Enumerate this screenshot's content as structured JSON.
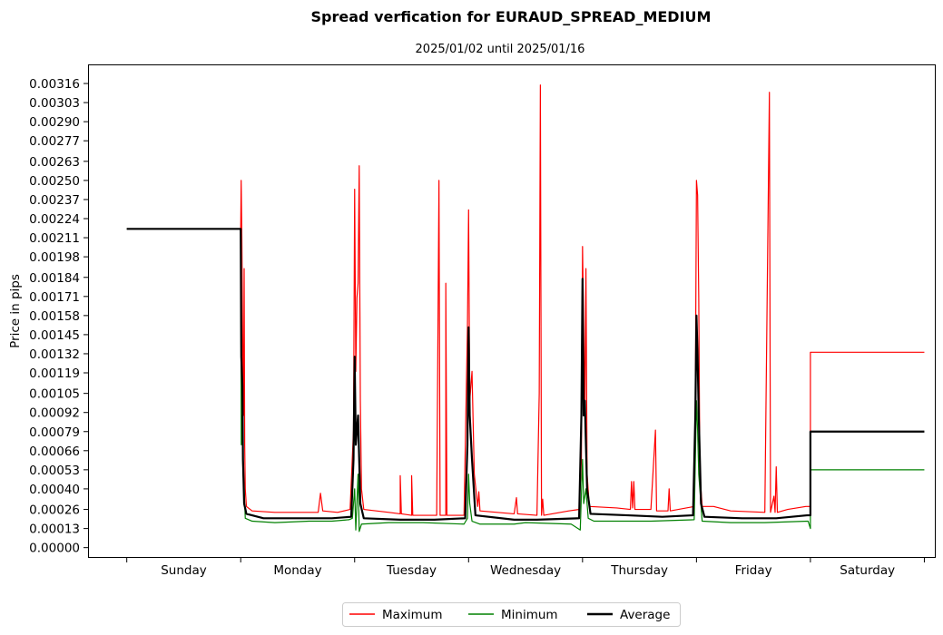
{
  "chart_data": {
    "type": "line",
    "title": "Spread verfication for EURAUD_SPREAD_MEDIUM",
    "subtitle": "2025/01/02 until 2025/01/16",
    "xlabel": "",
    "ylabel": "Price in pips",
    "ylim": [
      -7e-05,
      0.00329
    ],
    "xlim": [
      -0.34,
      7.1
    ],
    "grid": false,
    "legend_position": "bottom-center",
    "x_tick_labels": [
      "Sunday",
      "Monday",
      "Tuesday",
      "Wednesday",
      "Thursday",
      "Friday",
      "Saturday"
    ],
    "y_tick_labels": [
      "0.00000",
      "0.00013",
      "0.00026",
      "0.00040",
      "0.00053",
      "0.00066",
      "0.00079",
      "0.00092",
      "0.00105",
      "0.00119",
      "0.00132",
      "0.00145",
      "0.00158",
      "0.00171",
      "0.00184",
      "0.00198",
      "0.00211",
      "0.00224",
      "0.00237",
      "0.00250",
      "0.00263",
      "0.00277",
      "0.00290",
      "0.00303",
      "0.00316"
    ],
    "x_unit": "days from start of week (0 = Sunday 00:00, 7 = end of Saturday)",
    "series": [
      {
        "name": "Maximum",
        "color": "#ff0000",
        "linewidth": 1.2,
        "points": [
          [
            0,
            0.00217
          ],
          [
            1,
            0.00217
          ],
          [
            1.004,
            0.0025
          ],
          [
            1.01,
            0.0021
          ],
          [
            1.015,
            0.0016
          ],
          [
            1.02,
            0.0012
          ],
          [
            1.025,
            0.0009
          ],
          [
            1.03,
            0.0019
          ],
          [
            1.035,
            0.0007
          ],
          [
            1.04,
            0.0004
          ],
          [
            1.05,
            0.00028
          ],
          [
            1.1,
            0.00025
          ],
          [
            1.3,
            0.00024
          ],
          [
            1.5,
            0.00024
          ],
          [
            1.68,
            0.00024
          ],
          [
            1.7,
            0.00037
          ],
          [
            1.72,
            0.00025
          ],
          [
            1.85,
            0.00024
          ],
          [
            1.96,
            0.00026
          ],
          [
            1.99,
            0.0008
          ],
          [
            2.0,
            0.00244
          ],
          [
            2.01,
            0.0012
          ],
          [
            2.02,
            0.0017
          ],
          [
            2.03,
            0.0018
          ],
          [
            2.04,
            0.0026
          ],
          [
            2.05,
            0.001
          ],
          [
            2.06,
            0.0004
          ],
          [
            2.08,
            0.00026
          ],
          [
            2.3,
            0.00024
          ],
          [
            2.4,
            0.00023
          ],
          [
            2.4,
            0.00049
          ],
          [
            2.41,
            0.00023
          ],
          [
            2.5,
            0.00022
          ],
          [
            2.5,
            0.00049
          ],
          [
            2.51,
            0.00022
          ],
          [
            2.72,
            0.00022
          ],
          [
            2.74,
            0.0025
          ],
          [
            2.75,
            0.00022
          ],
          [
            2.8,
            0.00022
          ],
          [
            2.8,
            0.0018
          ],
          [
            2.81,
            0.00022
          ],
          [
            2.96,
            0.00022
          ],
          [
            2.99,
            0.0015
          ],
          [
            3.0,
            0.0023
          ],
          [
            3.01,
            0.001
          ],
          [
            3.03,
            0.0012
          ],
          [
            3.05,
            0.0005
          ],
          [
            3.08,
            0.00028
          ],
          [
            3.09,
            0.00038
          ],
          [
            3.1,
            0.00025
          ],
          [
            3.4,
            0.00023
          ],
          [
            3.42,
            0.00034
          ],
          [
            3.43,
            0.00023
          ],
          [
            3.6,
            0.00022
          ],
          [
            3.62,
            0.00105
          ],
          [
            3.63,
            0.00315
          ],
          [
            3.64,
            0.00022
          ],
          [
            3.65,
            0.00033
          ],
          [
            3.66,
            0.00022
          ],
          [
            3.88,
            0.00025
          ],
          [
            3.97,
            0.00026
          ],
          [
            3.99,
            0.0006
          ],
          [
            4.0,
            0.00205
          ],
          [
            4.01,
            0.0015
          ],
          [
            4.02,
            0.0009
          ],
          [
            4.03,
            0.0019
          ],
          [
            4.04,
            0.0005
          ],
          [
            4.06,
            0.00028
          ],
          [
            4.3,
            0.00027
          ],
          [
            4.42,
            0.00026
          ],
          [
            4.43,
            0.00045
          ],
          [
            4.44,
            0.00027
          ],
          [
            4.45,
            0.00045
          ],
          [
            4.46,
            0.00026
          ],
          [
            4.6,
            0.00026
          ],
          [
            4.64,
            0.0008
          ],
          [
            4.65,
            0.00025
          ],
          [
            4.75,
            0.00025
          ],
          [
            4.76,
            0.0004
          ],
          [
            4.77,
            0.00025
          ],
          [
            4.98,
            0.00028
          ],
          [
            4.99,
            0.001
          ],
          [
            5.0,
            0.0025
          ],
          [
            5.01,
            0.0024
          ],
          [
            5.02,
            0.0017
          ],
          [
            5.03,
            0.0005
          ],
          [
            5.05,
            0.00028
          ],
          [
            5.15,
            0.00028
          ],
          [
            5.3,
            0.00025
          ],
          [
            5.6,
            0.00024
          ],
          [
            5.64,
            0.0031
          ],
          [
            5.65,
            0.00024
          ],
          [
            5.68,
            0.00035
          ],
          [
            5.69,
            0.00024
          ],
          [
            5.7,
            0.00055
          ],
          [
            5.71,
            0.00024
          ],
          [
            5.8,
            0.00026
          ],
          [
            5.96,
            0.00028
          ],
          [
            6.0,
            0.00028
          ],
          [
            6.0,
            0.00133
          ],
          [
            7.0,
            0.00133
          ]
        ]
      },
      {
        "name": "Minimum",
        "color": "#008000",
        "linewidth": 1.2,
        "points": [
          [
            0,
            0.00217
          ],
          [
            1,
            0.00217
          ],
          [
            1.005,
            0.0007
          ],
          [
            1.01,
            0.0009
          ],
          [
            1.02,
            0.0005
          ],
          [
            1.03,
            0.0004
          ],
          [
            1.04,
            0.0002
          ],
          [
            1.1,
            0.00018
          ],
          [
            1.3,
            0.00017
          ],
          [
            1.6,
            0.00018
          ],
          [
            1.8,
            0.00018
          ],
          [
            1.95,
            0.00019
          ],
          [
            1.98,
            0.0002
          ],
          [
            2.0,
            0.0004
          ],
          [
            2.01,
            0.00012
          ],
          [
            2.03,
            0.0005
          ],
          [
            2.04,
            0.00011
          ],
          [
            2.06,
            0.00016
          ],
          [
            2.3,
            0.00017
          ],
          [
            2.6,
            0.00017
          ],
          [
            2.96,
            0.00016
          ],
          [
            2.99,
            0.0002
          ],
          [
            3.0,
            0.0005
          ],
          [
            3.01,
            0.0003
          ],
          [
            3.03,
            0.00018
          ],
          [
            3.1,
            0.00016
          ],
          [
            3.4,
            0.00016
          ],
          [
            3.5,
            0.00017
          ],
          [
            3.9,
            0.00016
          ],
          [
            3.98,
            0.00012
          ],
          [
            4.0,
            0.0006
          ],
          [
            4.01,
            0.0003
          ],
          [
            4.03,
            0.0004
          ],
          [
            4.05,
            0.0002
          ],
          [
            4.1,
            0.00018
          ],
          [
            4.4,
            0.00018
          ],
          [
            4.6,
            0.00018
          ],
          [
            4.98,
            0.00019
          ],
          [
            5.0,
            0.001
          ],
          [
            5.01,
            0.0008
          ],
          [
            5.02,
            0.0005
          ],
          [
            5.05,
            0.00018
          ],
          [
            5.3,
            0.00017
          ],
          [
            5.6,
            0.00017
          ],
          [
            5.98,
            0.00018
          ],
          [
            6.0,
            0.00013
          ],
          [
            6.0,
            0.00053
          ],
          [
            7.0,
            0.00053
          ]
        ]
      },
      {
        "name": "Average",
        "color": "#000000",
        "linewidth": 2.2,
        "points": [
          [
            0,
            0.00217
          ],
          [
            1,
            0.00217
          ],
          [
            1.005,
            0.0013
          ],
          [
            1.015,
            0.0011
          ],
          [
            1.02,
            0.0006
          ],
          [
            1.03,
            0.0003
          ],
          [
            1.05,
            0.00023
          ],
          [
            1.2,
            0.0002
          ],
          [
            1.5,
            0.0002
          ],
          [
            1.8,
            0.0002
          ],
          [
            1.97,
            0.00021
          ],
          [
            1.99,
            0.0006
          ],
          [
            2.0,
            0.0013
          ],
          [
            2.01,
            0.0007
          ],
          [
            2.03,
            0.0009
          ],
          [
            2.05,
            0.0003
          ],
          [
            2.08,
            0.0002
          ],
          [
            2.4,
            0.00019
          ],
          [
            2.7,
            0.00019
          ],
          [
            2.97,
            0.0002
          ],
          [
            2.99,
            0.0007
          ],
          [
            3.0,
            0.0015
          ],
          [
            3.01,
            0.0009
          ],
          [
            3.03,
            0.0006
          ],
          [
            3.06,
            0.00022
          ],
          [
            3.4,
            0.00019
          ],
          [
            3.6,
            0.00019
          ],
          [
            3.97,
            0.0002
          ],
          [
            3.99,
            0.0009
          ],
          [
            4.0,
            0.00183
          ],
          [
            4.01,
            0.0009
          ],
          [
            4.02,
            0.001
          ],
          [
            4.04,
            0.0004
          ],
          [
            4.07,
            0.00023
          ],
          [
            4.4,
            0.00022
          ],
          [
            4.7,
            0.00021
          ],
          [
            4.97,
            0.00022
          ],
          [
            4.99,
            0.0009
          ],
          [
            5.0,
            0.00158
          ],
          [
            5.01,
            0.0013
          ],
          [
            5.02,
            0.0009
          ],
          [
            5.04,
            0.0003
          ],
          [
            5.07,
            0.00021
          ],
          [
            5.4,
            0.0002
          ],
          [
            5.7,
            0.0002
          ],
          [
            5.97,
            0.00022
          ],
          [
            6.0,
            0.00022
          ],
          [
            6.0,
            0.00079
          ],
          [
            7.0,
            0.00079
          ]
        ]
      }
    ]
  }
}
